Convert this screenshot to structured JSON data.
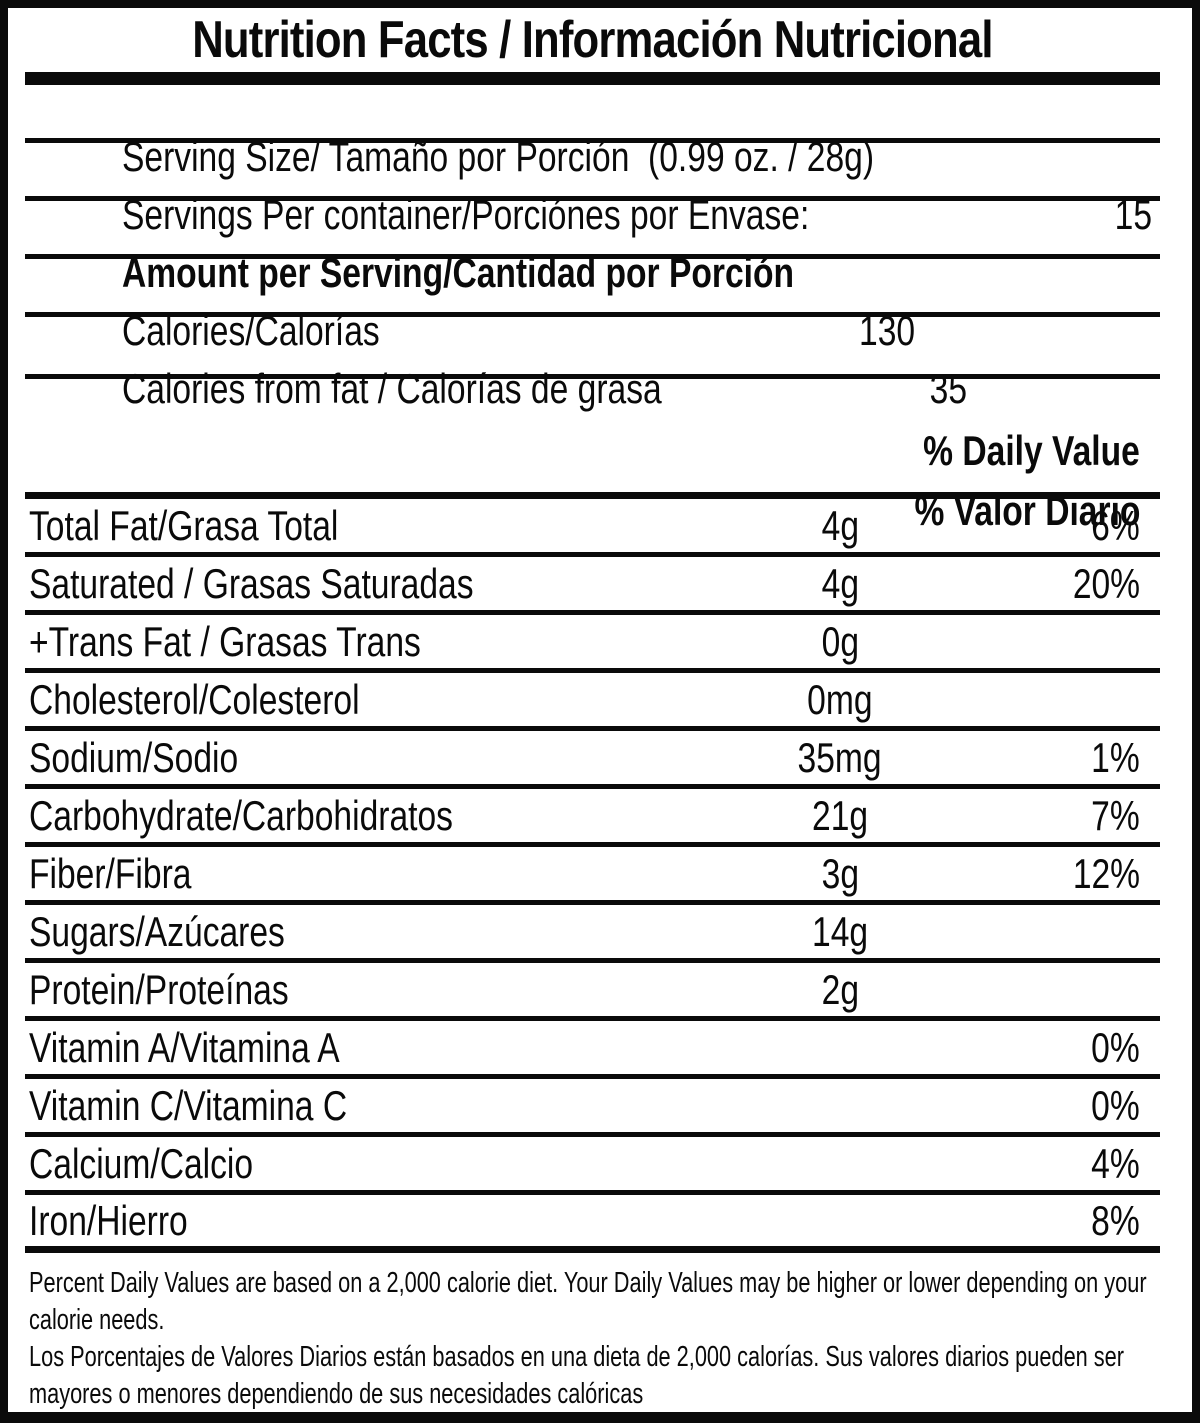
{
  "label": {
    "title": "Nutrition Facts / Información Nutricional",
    "serving_size": "Serving Size/ Tamaño por Porción  (0.99 oz. / 28g)",
    "servings_per_container": {
      "label": "Servings Per container/Porciónes por Envase:",
      "value": "15"
    },
    "amount_per_serving_heading": "Amount per Serving/Cantidad por Porción",
    "calories": {
      "label": "Calories/Calorías",
      "value": "130"
    },
    "calories_from_fat": {
      "label": "Calories from fat / Calorías de grasa",
      "value": "35"
    },
    "daily_value_header_en": "% Daily Value",
    "daily_value_header_es": "% Valor Diario",
    "nutrients": [
      {
        "name": "Total Fat/Grasa Total",
        "amount": "4g",
        "dv": "6%"
      },
      {
        "name": "Saturated / Grasas Saturadas",
        "amount": "4g",
        "dv": "20%"
      },
      {
        "name": "+Trans Fat / Grasas Trans",
        "amount": "0g",
        "dv": ""
      },
      {
        "name": "Cholesterol/Colesterol",
        "amount": "0mg",
        "dv": ""
      },
      {
        "name": "Sodium/Sodio",
        "amount": "35mg",
        "dv": "1%"
      },
      {
        "name": "Carbohydrate/Carbohidratos",
        "amount": "21g",
        "dv": "7%"
      },
      {
        "name": "Fiber/Fibra",
        "amount": "3g",
        "dv": "12%"
      },
      {
        "name": "Sugars/Azúcares",
        "amount": "14g",
        "dv": ""
      },
      {
        "name": "Protein/Proteínas",
        "amount": "2g",
        "dv": ""
      },
      {
        "name": "Vitamin A/Vitamina A",
        "amount": "",
        "dv": "0%"
      },
      {
        "name": "Vitamin C/Vitamina C",
        "amount": "",
        "dv": "0%"
      },
      {
        "name": "Calcium/Calcio",
        "amount": "",
        "dv": "4%"
      },
      {
        "name": "Iron/Hierro",
        "amount": "",
        "dv": "8%"
      }
    ],
    "footnote_lines": [
      "Percent Daily Values are based on a 2,000 calorie diet. Your Daily Values may be higher or lower depending on your",
      "calorie needs.",
      "Los Porcentajes de Valores Diarios están basados en una dieta de 2,000 calorías. Sus valores diarios pueden ser",
      "mayores o menores dependiendo de sus necesidades calóricas"
    ],
    "colors": {
      "ink": "#0a0a0a",
      "background": "#ffffff"
    }
  }
}
